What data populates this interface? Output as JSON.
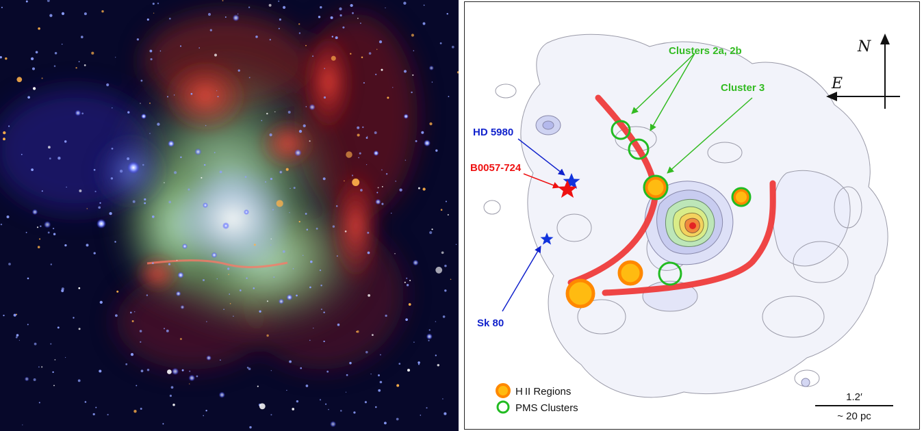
{
  "labels": {
    "clusters_2ab": "Clusters 2a, 2b",
    "cluster_3": "Cluster 3",
    "hd5980": "HD 5980",
    "b0057": "B0057-724",
    "sk80": "Sk 80"
  },
  "compass": {
    "north": "N",
    "east": "E"
  },
  "legend": {
    "hii_label": "H II Regions",
    "pms_label": "PMS Clusters"
  },
  "scale_bar": {
    "angular": "1.2′",
    "physical": "~ 20 pc"
  },
  "colors": {
    "arc": "#ee3b3b",
    "hii_fill": "#ffbb11",
    "hii_ring": "#ff8800",
    "pms_ring": "#22bb22",
    "hd5980_star": "#1133dd",
    "b0057_star": "#ee1111",
    "sk80_star": "#1133dd"
  }
}
